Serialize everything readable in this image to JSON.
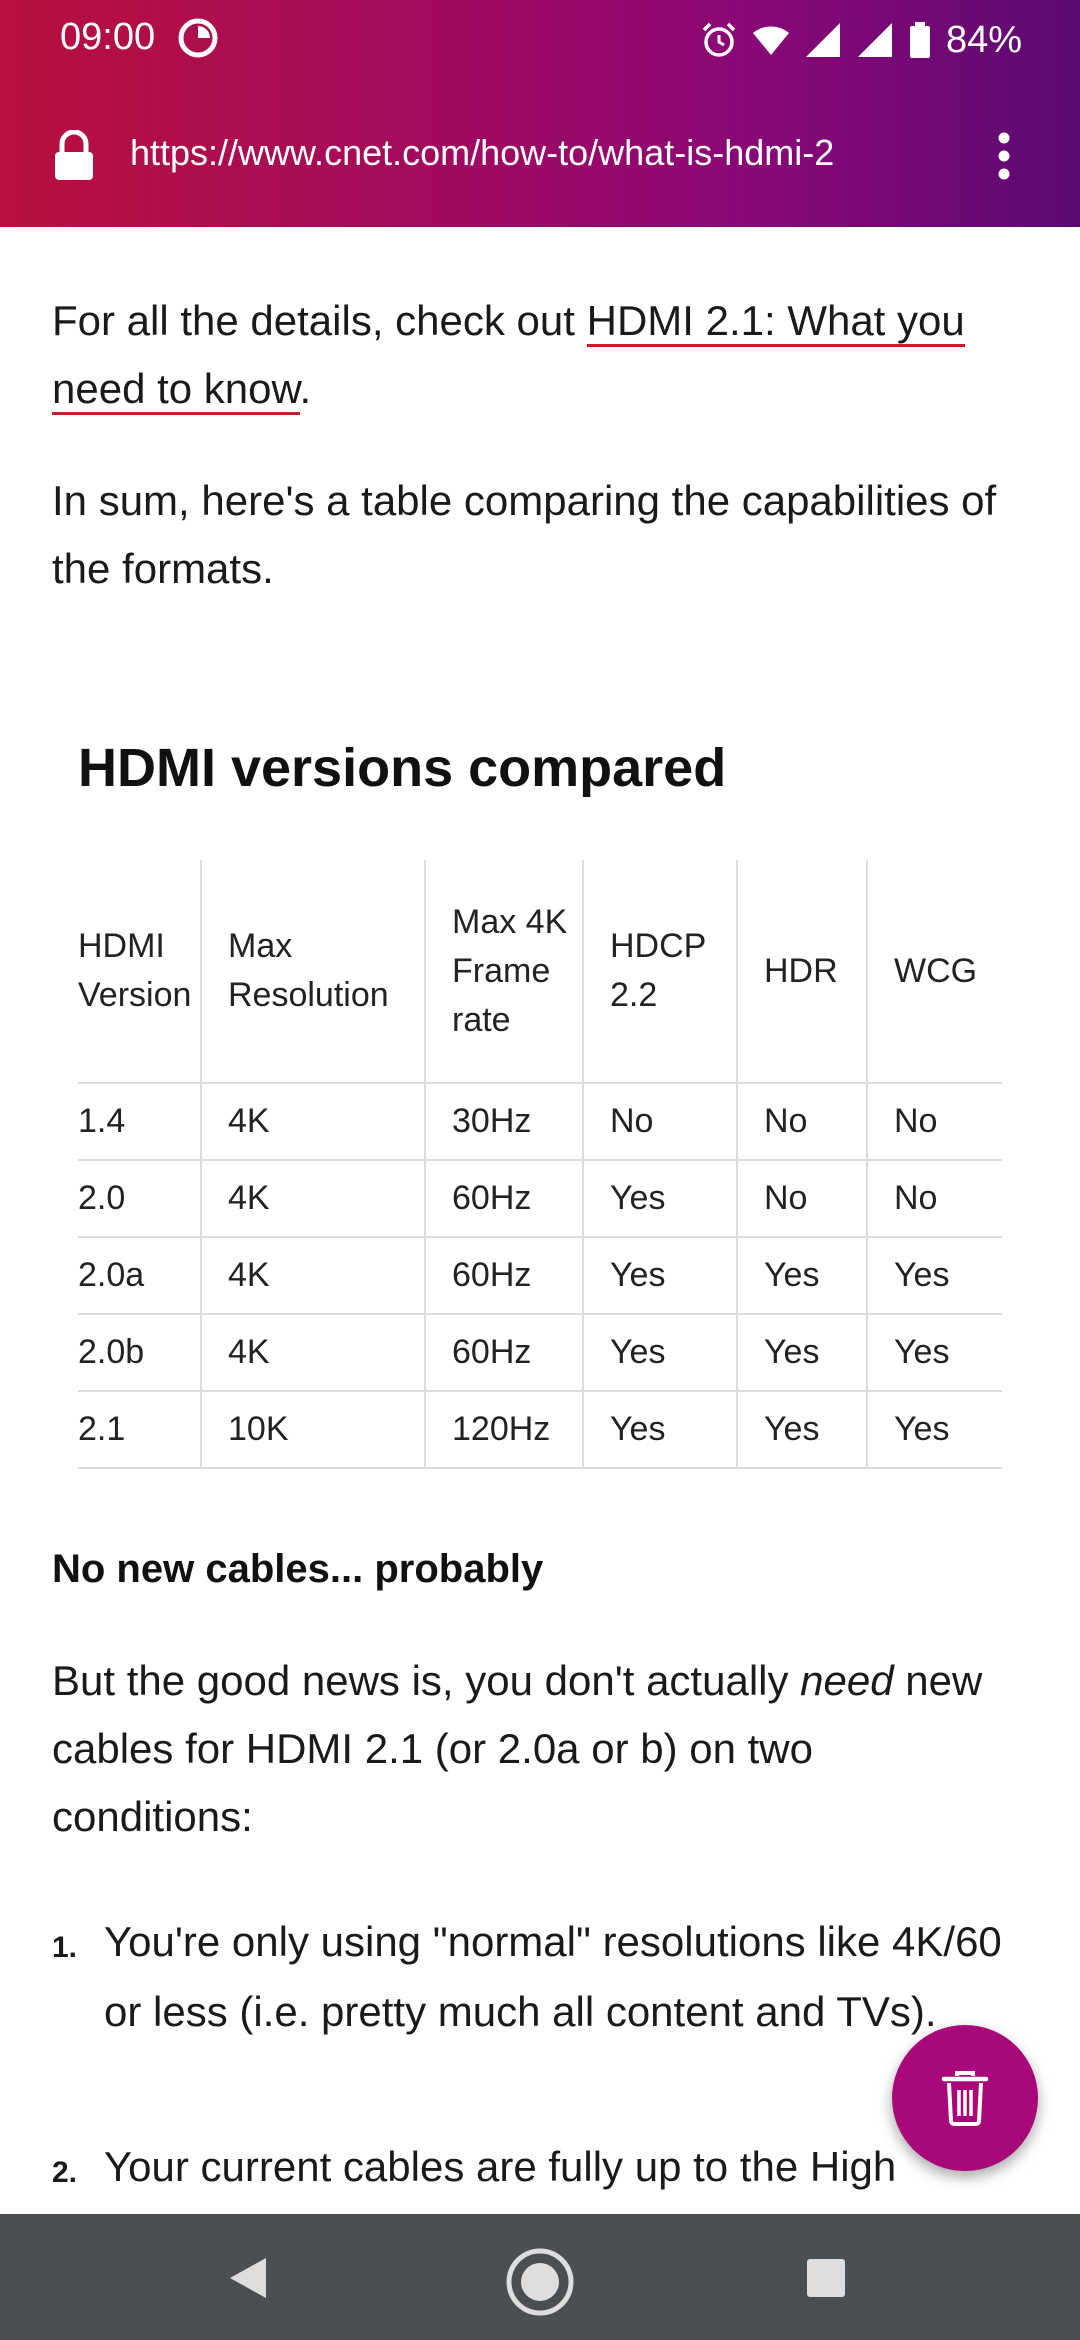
{
  "status_bar": {
    "time": "09:00",
    "battery": "84%",
    "icons": [
      "firefox-icon",
      "alarm-icon",
      "wifi-icon",
      "signal-icon",
      "signal-icon",
      "battery-icon"
    ]
  },
  "browser": {
    "url": "https://www.cnet.com/how-to/what-is-hdmi-2",
    "icons": [
      "lock-icon",
      "more-vert-icon"
    ]
  },
  "article": {
    "p1_before": "For all the details, check out ",
    "p1_link": "HDMI 2.1: What you need to know",
    "p1_after": ".",
    "p2": "In sum, here's a table comparing the capabilities of the formats.",
    "table_title": "HDMI versions compared",
    "table": {
      "headers": [
        "HDMI Version",
        "Max Resolution",
        "Max 4K Frame rate",
        "HDCP 2.2",
        "HDR",
        "WCG"
      ],
      "rows": [
        [
          "1.4",
          "4K",
          "30Hz",
          "No",
          "No",
          "No"
        ],
        [
          "2.0",
          "4K",
          "60Hz",
          "Yes",
          "No",
          "No"
        ],
        [
          "2.0a",
          "4K",
          "60Hz",
          "Yes",
          "Yes",
          "Yes"
        ],
        [
          "2.0b",
          "4K",
          "60Hz",
          "Yes",
          "Yes",
          "Yes"
        ],
        [
          "2.1",
          "10K",
          "120Hz",
          "Yes",
          "Yes",
          "Yes"
        ]
      ]
    },
    "subhead": "No new cables... probably",
    "p3_before": "But the good news is, you don't actually ",
    "p3_em": "need",
    "p3_after": " new cables for HDMI 2.1 (or 2.0a or b) on two conditions:",
    "list": [
      {
        "num": "1.",
        "text": "You're only using \"normal\" resolutions like 4K/60 or less (i.e. pretty much all content and TVs)."
      },
      {
        "num": "2.",
        "text": "Your current cables are fully up to the High"
      }
    ]
  },
  "fab": {
    "icon": "trash-icon",
    "color": "#a8087a"
  },
  "navbar": {
    "icons": [
      "back-icon",
      "home-icon",
      "recents-icon"
    ]
  },
  "colors": {
    "topbar_start": "#b8103e",
    "topbar_end": "#5b0a73",
    "link_underline": "#d11a2a",
    "navbar": "#4a4f54"
  }
}
